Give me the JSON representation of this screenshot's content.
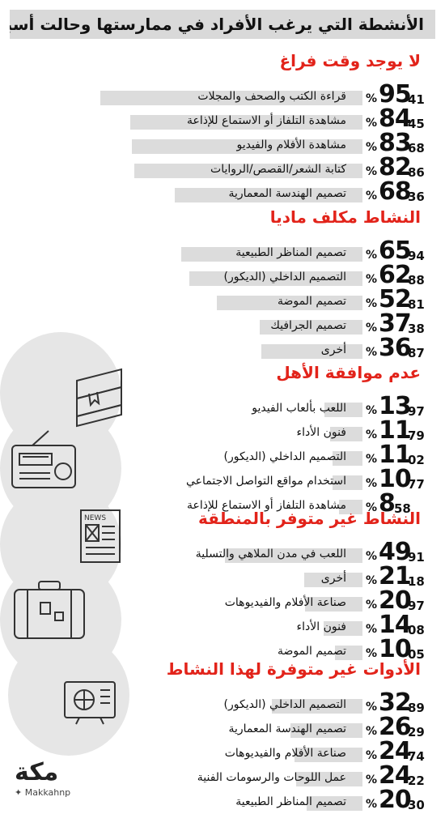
{
  "header": {
    "title": "الأنشطة التي يرغب الأفراد في ممارستها وحالت أسباب دون ذلك"
  },
  "chart_data": {
    "type": "bar",
    "orientation": "horizontal",
    "unit": "%",
    "sections": [
      {
        "title": "لا يوجد وقت فراغ",
        "items": [
          {
            "label": "قراءة الكتب والصحف والمجلات",
            "value": 95.41
          },
          {
            "label": "مشاهدة التلفاز أو الاستماع للإذاعة",
            "value": 84.45
          },
          {
            "label": "مشاهدة الأفلام والفيديو",
            "value": 83.68
          },
          {
            "label": "كتابة الشعر/القصص/الروايات",
            "value": 82.86
          },
          {
            "label": "تصميم الهندسة المعمارية",
            "value": 68.36
          }
        ]
      },
      {
        "title": "النشاط مكلف ماديا",
        "items": [
          {
            "label": "تصميم المناظر الطبيعية",
            "value": 65.94
          },
          {
            "label": "التصميم الداخلي (الديكور)",
            "value": 62.88
          },
          {
            "label": "تصميم الموضة",
            "value": 52.81
          },
          {
            "label": "تصميم الجرافيك",
            "value": 37.38
          },
          {
            "label": "أخرى",
            "value": 36.87
          }
        ]
      },
      {
        "title": "عدم موافقة الأهل",
        "items": [
          {
            "label": "اللعب بألعاب الفيديو",
            "value": 13.97
          },
          {
            "label": "فنون الأداء",
            "value": 11.79
          },
          {
            "label": "التصميم الداخلي (الديكور)",
            "value": 11.02
          },
          {
            "label": "استخدام مواقع التواصل الاجتماعي",
            "value": 10.77
          },
          {
            "label": "مشاهدة التلفاز أو الاستماع للإذاعة",
            "value": 8.58
          }
        ]
      },
      {
        "title": "النشاط غير متوفر بالمنطقة",
        "items": [
          {
            "label": "اللعب في مدن الملاهي والتسلية",
            "value": 49.91
          },
          {
            "label": "أخرى",
            "value": 21.18
          },
          {
            "label": "صناعة الأفلام والفيديوهات",
            "value": 20.97
          },
          {
            "label": "فنون الأداء",
            "value": 14.08
          },
          {
            "label": "تصميم الموضة",
            "value": 10.05
          }
        ]
      },
      {
        "title": "الأدوات غير متوفرة لهذا النشاط",
        "items": [
          {
            "label": "التصميم الداخلي (الديكور)",
            "value": 32.89
          },
          {
            "label": "تصميم الهندسة المعمارية",
            "value": 26.29
          },
          {
            "label": "صناعة الأفلام والفيديوهات",
            "value": 24.74
          },
          {
            "label": "عمل اللوحات والرسومات الفنية",
            "value": 24.22
          },
          {
            "label": "تصميم المناظر الطبيعية",
            "value": 20.3
          }
        ]
      }
    ]
  },
  "icons": [
    "books-icon",
    "radio-icon",
    "newspaper-icon",
    "suitcase-icon",
    "computer-icon"
  ],
  "colors": {
    "title_red": "#e2231a",
    "bar_gray": "#dcdcdc",
    "header_gray": "#d9d9d9",
    "circle_gray": "#e6e6e6"
  },
  "logo": {
    "mark": "مكة",
    "handle": "Makkahnp"
  }
}
